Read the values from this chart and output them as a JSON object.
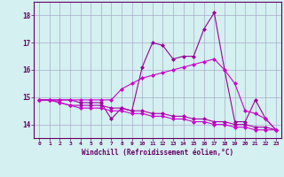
{
  "x": [
    0,
    1,
    2,
    3,
    4,
    5,
    6,
    7,
    8,
    9,
    10,
    11,
    12,
    13,
    14,
    15,
    16,
    17,
    18,
    19,
    20,
    21,
    22,
    23
  ],
  "line1": [
    14.9,
    14.9,
    14.9,
    14.9,
    14.8,
    14.8,
    14.8,
    14.2,
    14.6,
    14.5,
    16.1,
    17.0,
    16.9,
    16.4,
    16.5,
    16.5,
    17.5,
    18.1,
    16.0,
    14.1,
    14.1,
    14.9,
    14.2,
    13.8
  ],
  "line2": [
    14.9,
    14.9,
    14.9,
    14.9,
    14.9,
    14.9,
    14.9,
    14.9,
    15.3,
    15.5,
    15.7,
    15.8,
    15.9,
    16.0,
    16.1,
    16.2,
    16.3,
    16.4,
    16.0,
    15.5,
    14.5,
    14.4,
    14.2,
    13.8
  ],
  "line3": [
    14.9,
    14.9,
    14.8,
    14.7,
    14.7,
    14.7,
    14.7,
    14.6,
    14.6,
    14.5,
    14.5,
    14.4,
    14.4,
    14.3,
    14.3,
    14.2,
    14.2,
    14.1,
    14.1,
    14.0,
    14.0,
    13.9,
    13.9,
    13.8
  ],
  "line4": [
    14.9,
    14.9,
    14.8,
    14.7,
    14.6,
    14.6,
    14.6,
    14.5,
    14.5,
    14.4,
    14.4,
    14.3,
    14.3,
    14.2,
    14.2,
    14.1,
    14.1,
    14.0,
    14.0,
    13.9,
    13.9,
    13.8,
    13.8,
    13.8
  ],
  "line_color1": "#990099",
  "line_color2": "#cc00cc",
  "line_color3": "#aa00aa",
  "line_color4": "#cc00cc",
  "bg_color": "#d4f0f0",
  "grid_color": "#aaaacc",
  "axis_color": "#660066",
  "xlabel": "Windchill (Refroidissement éolien,°C)",
  "ylim": [
    13.5,
    18.5
  ],
  "xlim": [
    -0.5,
    23.5
  ],
  "yticks": [
    14,
    15,
    16,
    17,
    18
  ],
  "xticks": [
    0,
    1,
    2,
    3,
    4,
    5,
    6,
    7,
    8,
    9,
    10,
    11,
    12,
    13,
    14,
    15,
    16,
    17,
    18,
    19,
    20,
    21,
    22,
    23
  ]
}
